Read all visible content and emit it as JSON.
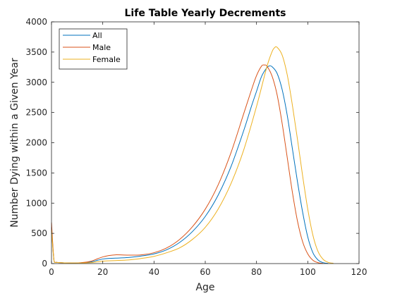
{
  "chart_data": {
    "type": "line",
    "title": "Life Table Yearly Decrements",
    "xlabel": "Age",
    "ylabel": "Number Dying within a Given Year",
    "xlim": [
      0,
      120
    ],
    "ylim": [
      0,
      4000
    ],
    "xticks": [
      "0",
      "20",
      "40",
      "60",
      "80",
      "100",
      "120"
    ],
    "yticks": [
      "0",
      "500",
      "1000",
      "1500",
      "2000",
      "2500",
      "3000",
      "3500",
      "4000"
    ],
    "grid": false,
    "legend_position": "top-left",
    "series": [
      {
        "name": "All",
        "color": "#0072BD",
        "x": [
          0,
          1,
          2,
          5,
          10,
          15,
          18,
          20,
          22,
          25,
          30,
          35,
          40,
          45,
          50,
          55,
          60,
          65,
          70,
          75,
          78,
          80,
          82,
          84,
          85,
          86,
          88,
          90,
          92,
          94,
          96,
          98,
          100,
          102,
          104,
          106,
          108
        ],
        "y": [
          600,
          40,
          20,
          12,
          10,
          25,
          55,
          75,
          85,
          90,
          100,
          125,
          160,
          230,
          350,
          530,
          780,
          1130,
          1600,
          2200,
          2600,
          2850,
          3100,
          3240,
          3270,
          3260,
          3150,
          2880,
          2450,
          1900,
          1350,
          850,
          440,
          180,
          60,
          15,
          3
        ]
      },
      {
        "name": "Male",
        "color": "#D95319",
        "x": [
          0,
          1,
          2,
          5,
          10,
          15,
          18,
          20,
          22,
          25,
          30,
          35,
          40,
          45,
          50,
          55,
          60,
          65,
          70,
          75,
          78,
          80,
          82,
          83,
          84,
          86,
          88,
          90,
          92,
          94,
          96,
          98,
          100,
          102,
          104,
          106
        ],
        "y": [
          680,
          45,
          20,
          12,
          10,
          35,
          80,
          110,
          130,
          145,
          140,
          145,
          180,
          260,
          400,
          610,
          900,
          1300,
          1830,
          2480,
          2870,
          3110,
          3270,
          3285,
          3270,
          3110,
          2800,
          2320,
          1750,
          1180,
          700,
          360,
          160,
          55,
          15,
          3
        ]
      },
      {
        "name": "Female",
        "color": "#EDB120",
        "x": [
          0,
          1,
          2,
          5,
          10,
          15,
          18,
          20,
          22,
          25,
          30,
          35,
          40,
          45,
          50,
          55,
          60,
          65,
          70,
          75,
          80,
          84,
          86,
          87,
          88,
          90,
          92,
          94,
          96,
          98,
          100,
          102,
          104,
          106,
          108,
          110
        ],
        "y": [
          560,
          40,
          20,
          12,
          10,
          15,
          30,
          40,
          45,
          50,
          60,
          85,
          120,
          180,
          260,
          400,
          600,
          900,
          1320,
          1880,
          2600,
          3250,
          3500,
          3570,
          3580,
          3450,
          3120,
          2620,
          2050,
          1450,
          900,
          470,
          200,
          70,
          20,
          5
        ]
      }
    ]
  }
}
